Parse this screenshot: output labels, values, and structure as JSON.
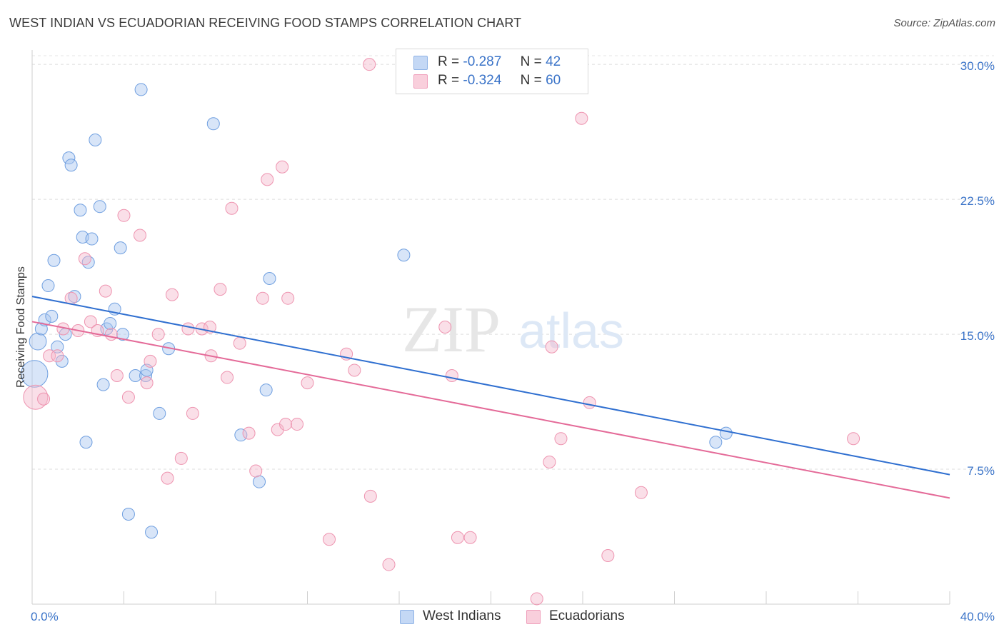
{
  "title": "WEST INDIAN VS ECUADORIAN RECEIVING FOOD STAMPS CORRELATION CHART",
  "source": "Source: ZipAtlas.com",
  "watermark": {
    "zip": "ZIP",
    "atlas": "atlas"
  },
  "legend": {
    "rows": [
      {
        "r_label": "R =",
        "r_value": "-0.287",
        "n_label": "N =",
        "n_value": "42",
        "color": "#a9c6f0"
      },
      {
        "r_label": "R =",
        "r_value": "-0.324",
        "n_label": "N =",
        "n_value": "60",
        "color": "#f5b8cb"
      }
    ]
  },
  "bottom_legend": [
    {
      "label": "West Indians",
      "color": "#a9c6f0"
    },
    {
      "label": "Ecuadorians",
      "color": "#f5b8cb"
    }
  ],
  "chart_data": {
    "type": "scatter",
    "title": "WEST INDIAN VS ECUADORIAN RECEIVING FOOD STAMPS CORRELATION CHART",
    "xlabel": "",
    "ylabel": "Receiving Food Stamps",
    "xlim": [
      0,
      40
    ],
    "ylim": [
      0,
      30.8
    ],
    "x_tick_labels": [
      "0.0%",
      "40.0%"
    ],
    "y_ticks": [
      7.5,
      15.0,
      22.5,
      30.0
    ],
    "y_tick_labels": [
      "7.5%",
      "15.0%",
      "22.5%",
      "30.0%"
    ],
    "grid": true,
    "legend_position": "top-center",
    "series": [
      {
        "name": "West Indians",
        "color": "#a9c6f0",
        "edge": "#6f9fe0",
        "trend_color": "#2f6fd0",
        "trend": {
          "x0": 0,
          "y0": 17.1,
          "x1": 40,
          "y1": 7.2
        },
        "points": [
          [
            0.1,
            12.8,
            2.2
          ],
          [
            0.25,
            14.6,
            1.4
          ],
          [
            0.4,
            15.3,
            1
          ],
          [
            0.55,
            15.8,
            1
          ],
          [
            0.7,
            17.7,
            1
          ],
          [
            0.85,
            16.0,
            1
          ],
          [
            0.95,
            19.1,
            1
          ],
          [
            1.1,
            14.3,
            1
          ],
          [
            1.3,
            13.5,
            1
          ],
          [
            1.45,
            15.0,
            1
          ],
          [
            1.6,
            24.8,
            1
          ],
          [
            1.7,
            24.4,
            1
          ],
          [
            1.85,
            17.1,
            1
          ],
          [
            2.1,
            21.9,
            1
          ],
          [
            2.2,
            20.4,
            1
          ],
          [
            2.35,
            9.0,
            1
          ],
          [
            2.45,
            19.0,
            1
          ],
          [
            2.6,
            20.3,
            1
          ],
          [
            2.75,
            25.8,
            1
          ],
          [
            2.95,
            22.1,
            1
          ],
          [
            3.1,
            12.2,
            1
          ],
          [
            3.25,
            15.3,
            1
          ],
          [
            3.4,
            15.6,
            1
          ],
          [
            3.6,
            16.4,
            1
          ],
          [
            3.85,
            19.8,
            1
          ],
          [
            3.95,
            15.0,
            1
          ],
          [
            4.2,
            5.0,
            1
          ],
          [
            4.5,
            12.7,
            1
          ],
          [
            4.75,
            28.6,
            1
          ],
          [
            4.95,
            12.7,
            1
          ],
          [
            5.0,
            13.0,
            1
          ],
          [
            5.2,
            4.0,
            1
          ],
          [
            5.55,
            10.6,
            1
          ],
          [
            5.95,
            14.2,
            1
          ],
          [
            7.9,
            26.7,
            1
          ],
          [
            9.1,
            9.4,
            1
          ],
          [
            9.9,
            6.8,
            1
          ],
          [
            10.2,
            11.9,
            1
          ],
          [
            10.35,
            18.1,
            1
          ],
          [
            16.2,
            19.4,
            1
          ],
          [
            29.8,
            9.0,
            1
          ],
          [
            30.25,
            9.5,
            1
          ]
        ]
      },
      {
        "name": "Ecuadorians",
        "color": "#f5b8cb",
        "edge": "#ee94b0",
        "trend_color": "#e46a98",
        "trend": {
          "x0": 0,
          "y0": 15.7,
          "x1": 40,
          "y1": 5.9
        },
        "points": [
          [
            0.15,
            11.5,
            2
          ],
          [
            0.5,
            11.4,
            1
          ],
          [
            0.75,
            13.8,
            1
          ],
          [
            1.1,
            13.8,
            1
          ],
          [
            1.35,
            15.3,
            1
          ],
          [
            1.7,
            17.0,
            1
          ],
          [
            2.0,
            15.2,
            1
          ],
          [
            2.3,
            19.2,
            1
          ],
          [
            2.55,
            15.7,
            1
          ],
          [
            2.85,
            15.2,
            1
          ],
          [
            3.2,
            17.4,
            1
          ],
          [
            3.45,
            15.0,
            1
          ],
          [
            3.7,
            12.7,
            1
          ],
          [
            4.0,
            21.6,
            1
          ],
          [
            4.2,
            11.5,
            1
          ],
          [
            4.7,
            20.5,
            1
          ],
          [
            5.0,
            12.3,
            1
          ],
          [
            5.15,
            13.5,
            1
          ],
          [
            5.5,
            15.0,
            1
          ],
          [
            5.9,
            7.0,
            1
          ],
          [
            6.1,
            17.2,
            1
          ],
          [
            6.5,
            8.1,
            1
          ],
          [
            6.8,
            15.3,
            1
          ],
          [
            7.0,
            10.6,
            1
          ],
          [
            7.4,
            15.3,
            1
          ],
          [
            7.75,
            15.4,
            1
          ],
          [
            7.8,
            13.8,
            1
          ],
          [
            8.2,
            17.5,
            1
          ],
          [
            8.5,
            12.6,
            1
          ],
          [
            8.7,
            22.0,
            1
          ],
          [
            9.05,
            14.5,
            1
          ],
          [
            9.45,
            9.5,
            1
          ],
          [
            9.75,
            7.4,
            1
          ],
          [
            10.05,
            17.0,
            1
          ],
          [
            10.25,
            23.6,
            1
          ],
          [
            10.7,
            9.7,
            1
          ],
          [
            10.9,
            24.3,
            1
          ],
          [
            11.05,
            10.0,
            1
          ],
          [
            11.15,
            17.0,
            1
          ],
          [
            11.55,
            10.0,
            1
          ],
          [
            12.0,
            12.3,
            1
          ],
          [
            12.95,
            3.6,
            1
          ],
          [
            13.7,
            13.9,
            1
          ],
          [
            14.05,
            13.0,
            1
          ],
          [
            14.7,
            30.0,
            1
          ],
          [
            14.75,
            6.0,
            1
          ],
          [
            15.55,
            2.2,
            1
          ],
          [
            18.0,
            15.4,
            1
          ],
          [
            18.3,
            12.7,
            1
          ],
          [
            18.55,
            3.7,
            1
          ],
          [
            19.1,
            3.7,
            1
          ],
          [
            22.0,
            0.3,
            1
          ],
          [
            22.55,
            7.9,
            1
          ],
          [
            22.65,
            14.3,
            1
          ],
          [
            23.05,
            9.2,
            1
          ],
          [
            23.95,
            27.0,
            1
          ],
          [
            24.3,
            11.2,
            1
          ],
          [
            25.1,
            2.7,
            1
          ],
          [
            26.55,
            6.2,
            1
          ],
          [
            35.8,
            9.2,
            1
          ]
        ]
      }
    ]
  }
}
